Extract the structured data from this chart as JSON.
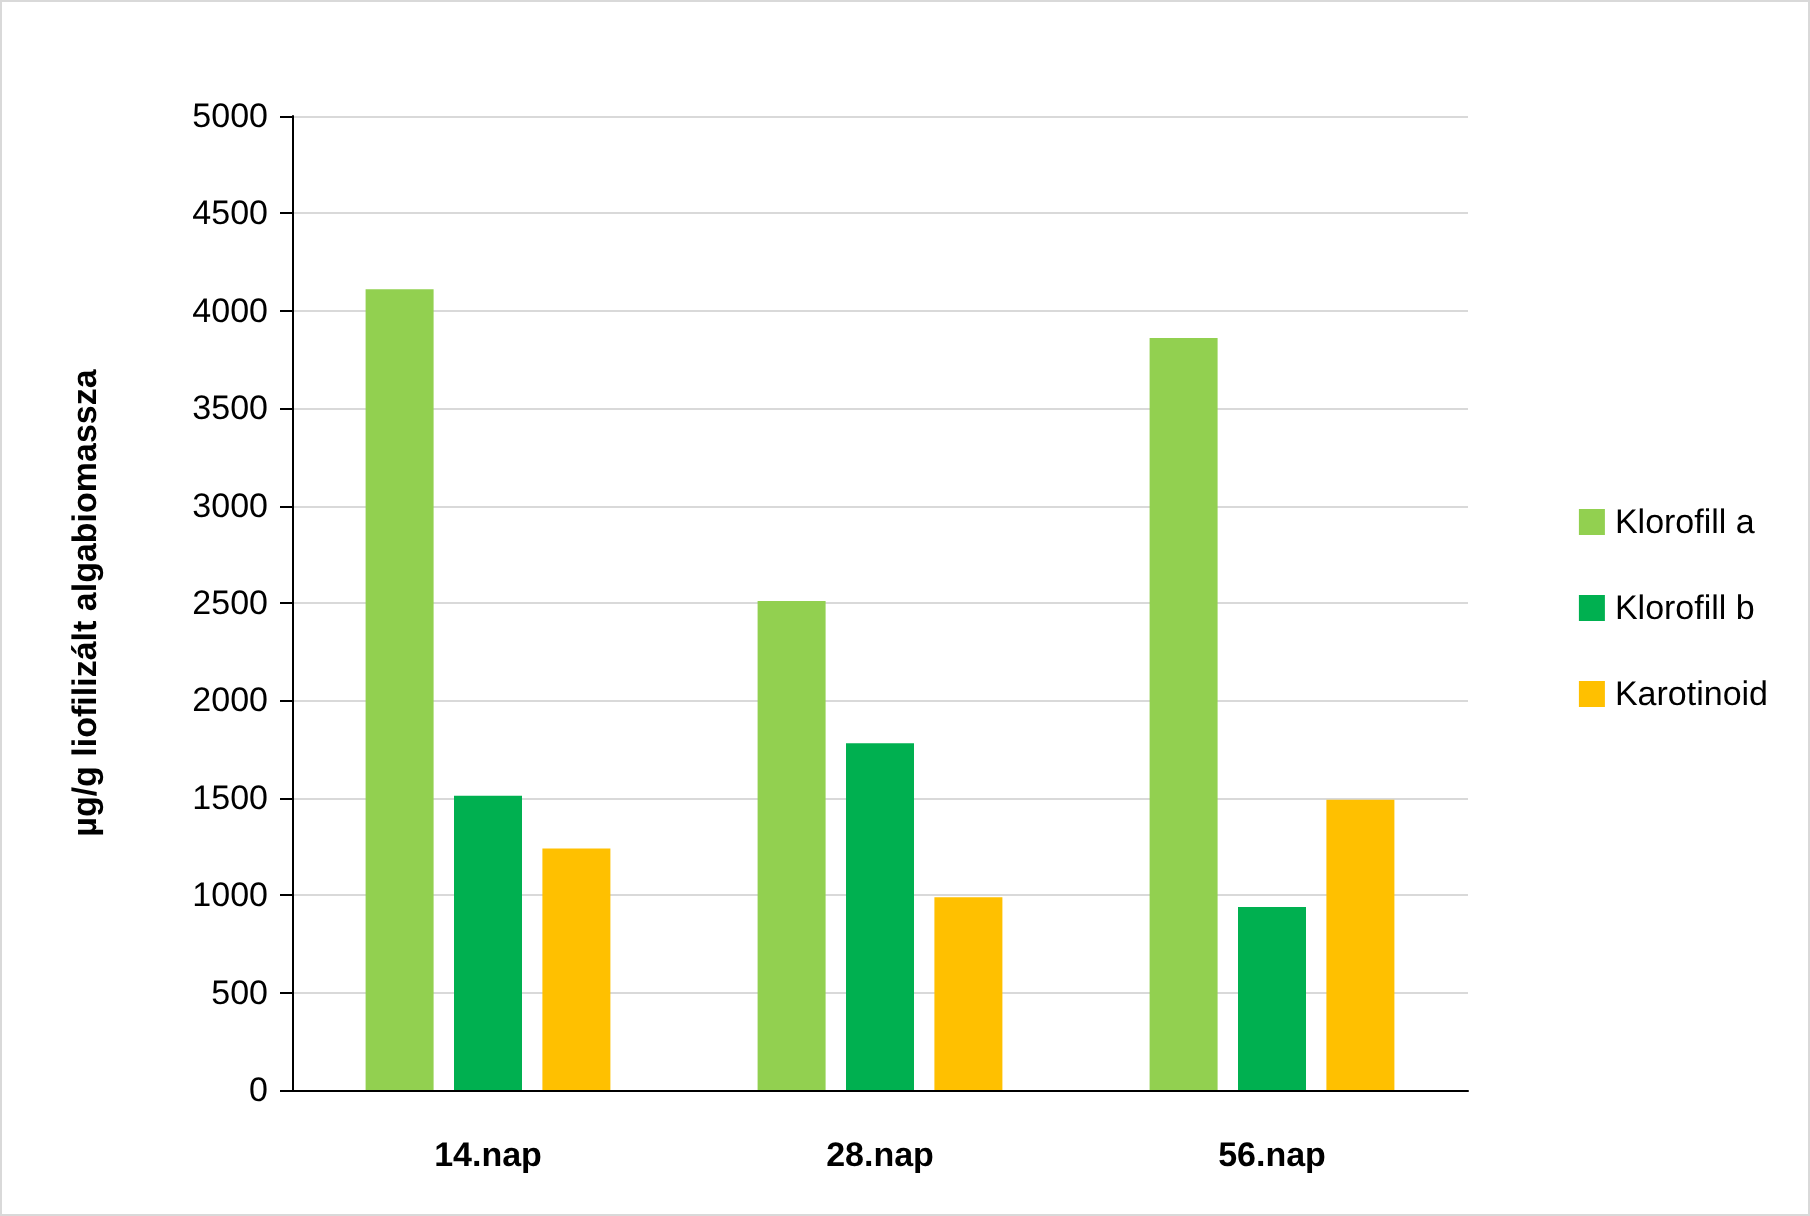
{
  "chart_data": {
    "type": "bar",
    "ylabel": "µg/g liofilizált algabiomassza",
    "categories": [
      "14.nap",
      "28.nap",
      "56.nap"
    ],
    "series": [
      {
        "name": "Klorofill a",
        "color": "#92d050",
        "values": [
          4110,
          2510,
          3860
        ]
      },
      {
        "name": "Klorofill b",
        "color": "#00b050",
        "values": [
          1510,
          1780,
          940
        ]
      },
      {
        "name": "Karotinoid",
        "color": "#ffc000",
        "values": [
          1240,
          990,
          1490
        ]
      }
    ],
    "ylim": [
      0,
      5000
    ],
    "yticks": [
      0,
      500,
      1000,
      1500,
      2000,
      2500,
      3000,
      3500,
      4000,
      4500,
      5000
    ],
    "grid": "y",
    "legend": "right"
  }
}
